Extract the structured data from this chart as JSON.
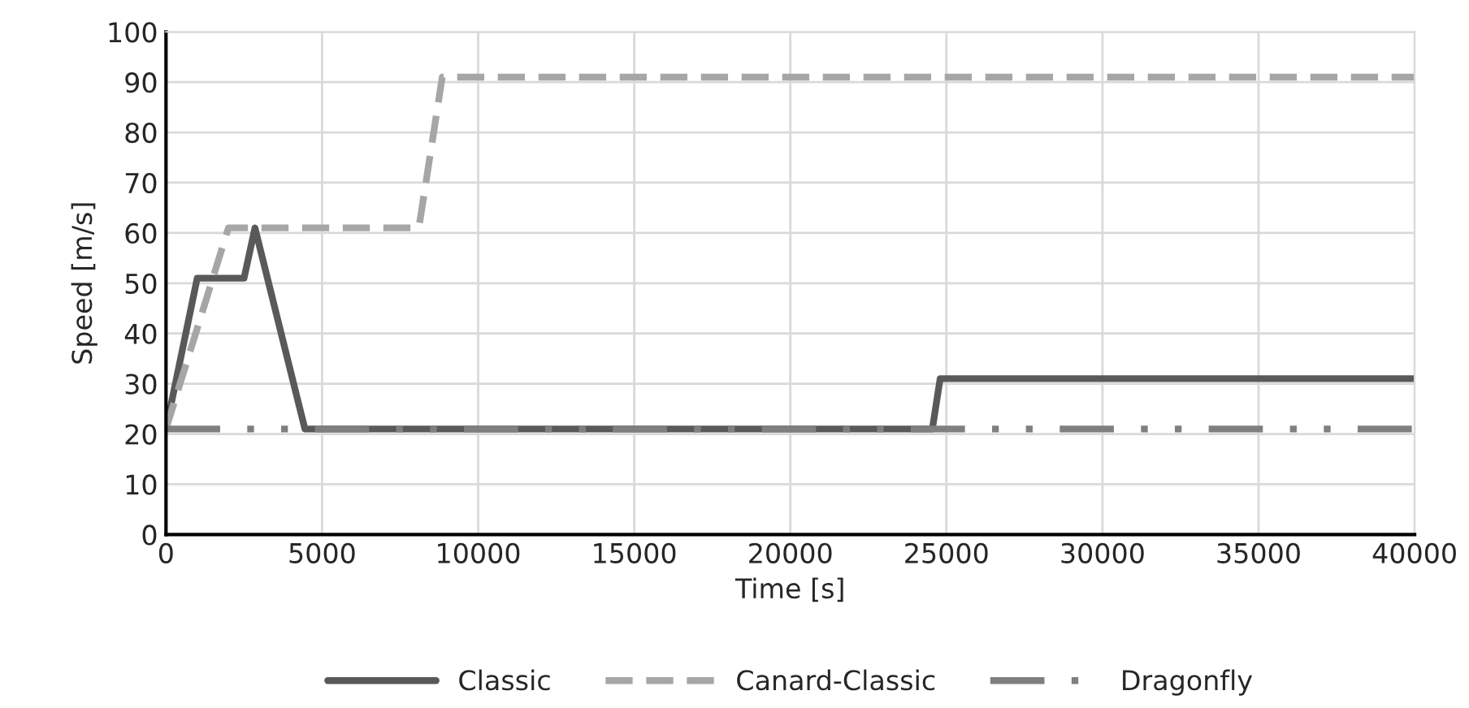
{
  "chart_data": {
    "type": "line",
    "xlabel": "Time [s]",
    "ylabel": "Speed [m/s]",
    "xlim": [
      0,
      40000
    ],
    "xticks": [
      0,
      5000,
      10000,
      15000,
      20000,
      25000,
      30000,
      35000,
      40000
    ],
    "ylim": [
      0,
      100
    ],
    "yticks": [
      0,
      10,
      20,
      30,
      40,
      50,
      60,
      70,
      80,
      90,
      100
    ],
    "grid": true,
    "legend": "bottom",
    "marker": "none",
    "series": [
      {
        "name": "Classic",
        "color": "#595959",
        "line_style": "solid",
        "x": [
          0,
          1000,
          2500,
          2850,
          4450,
          24550,
          24800,
          40000
        ],
        "values": [
          21,
          51,
          51,
          61,
          21,
          21,
          31,
          31
        ]
      },
      {
        "name": "Canard-Classic",
        "color": "#a6a6a6",
        "line_style": "dashed",
        "x": [
          0,
          2000,
          8100,
          8850,
          40000
        ],
        "values": [
          21,
          61,
          61,
          91,
          91
        ]
      },
      {
        "name": "Dragonfly",
        "color": "#7f7f7f",
        "line_style": "dashdotdot",
        "x": [
          0,
          40000
        ],
        "values": [
          21,
          21
        ]
      }
    ]
  }
}
